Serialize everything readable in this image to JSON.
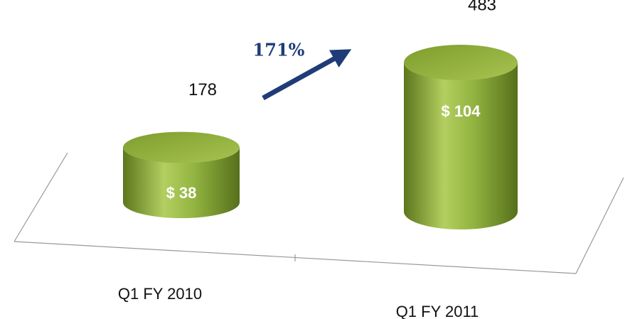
{
  "chart_data": {
    "type": "bar",
    "categories": [
      "Q1 FY 2010",
      "Q1 FY 2011"
    ],
    "values": [
      178,
      483
    ],
    "inner": {
      "values": [
        38,
        104
      ],
      "value_labels": [
        "$ 38",
        "$ 104"
      ]
    },
    "annotation": "171%",
    "color": "#8aab3a"
  }
}
